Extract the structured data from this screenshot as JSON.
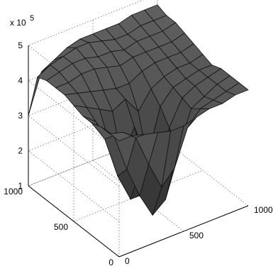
{
  "chart_data": {
    "type": "surface",
    "title": "",
    "xlabel": "",
    "ylabel": "",
    "zlabel": "",
    "z_multiplier_label": "x 10",
    "z_multiplier_exponent": "5",
    "xlim": [
      0,
      1000
    ],
    "ylim": [
      0,
      1000
    ],
    "zlim": [
      1,
      5
    ],
    "x_ticks": [
      "0",
      "500",
      "1000"
    ],
    "y_ticks": [
      "0",
      "500",
      "1000"
    ],
    "z_ticks": [
      "1",
      "2",
      "3",
      "4",
      "5"
    ],
    "grid": true,
    "colormap": "gray",
    "x": [
      0,
      100,
      200,
      300,
      400,
      500,
      600,
      700,
      800,
      900,
      1000
    ],
    "y": [
      0,
      100,
      200,
      300,
      400,
      500,
      600,
      700,
      800,
      900,
      1000
    ],
    "z_rows_note": "rows indexed by y, columns by x; values are x10^5",
    "z": [
      [
        4.3,
        4.3,
        4.2,
        4.1,
        4.0,
        4.0,
        4.1,
        4.2,
        4.2,
        4.3,
        4.3
      ],
      [
        4.3,
        4.2,
        3.9,
        3.0,
        2.2,
        2.6,
        3.6,
        4.0,
        4.1,
        4.2,
        4.3
      ],
      [
        4.3,
        3.9,
        2.8,
        1.9,
        1.2,
        1.5,
        2.8,
        3.8,
        4.0,
        4.2,
        4.3
      ],
      [
        4.2,
        3.6,
        2.4,
        1.6,
        2.6,
        1.7,
        3.2,
        3.9,
        4.1,
        4.2,
        4.3
      ],
      [
        4.2,
        3.9,
        3.2,
        2.6,
        3.3,
        2.3,
        3.6,
        4.0,
        4.1,
        4.2,
        4.2
      ],
      [
        4.3,
        4.1,
        3.9,
        3.7,
        3.9,
        3.4,
        3.9,
        4.1,
        4.2,
        4.2,
        4.3
      ],
      [
        4.4,
        4.3,
        4.2,
        4.1,
        4.0,
        4.0,
        4.2,
        4.3,
        4.3,
        4.3,
        4.4
      ],
      [
        4.4,
        4.4,
        4.5,
        4.5,
        4.4,
        4.3,
        4.4,
        4.4,
        4.4,
        4.4,
        4.5
      ],
      [
        4.4,
        4.5,
        4.6,
        4.6,
        4.5,
        4.5,
        4.4,
        4.5,
        4.5,
        4.5,
        4.6
      ],
      [
        4.3,
        4.5,
        4.6,
        4.7,
        4.7,
        4.6,
        4.5,
        4.5,
        4.6,
        4.6,
        4.6
      ],
      [
        3.0,
        4.1,
        4.3,
        4.5,
        4.6,
        4.6,
        4.6,
        4.6,
        4.7,
        4.7,
        4.7
      ]
    ]
  }
}
